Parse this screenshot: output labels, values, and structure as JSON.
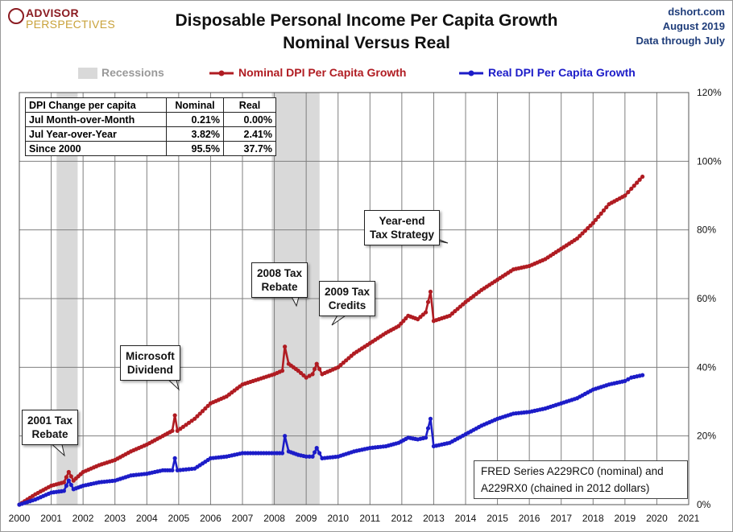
{
  "header": {
    "title_line1": "Disposable Personal Income Per Capita Growth",
    "title_line2": "Nominal Versus Real",
    "logo_line1": "ADVISOR",
    "logo_line2": "PERSPECTIVES",
    "source_site": "dshort.com",
    "source_date": "August 2019",
    "source_through": "Data through July"
  },
  "legend": {
    "recessions": "Recessions",
    "nominal": "Nominal DPI Per Capita Growth",
    "real": "Real DPI Per Capita Growth"
  },
  "table": {
    "headers": [
      "DPI Change per capita",
      "Nominal",
      "Real"
    ],
    "rows": [
      [
        "Jul Month-over-Month",
        "0.21%",
        "0.00%"
      ],
      [
        "Jul Year-over-Year",
        "3.82%",
        "2.41%"
      ],
      [
        "Since 2000",
        "95.5%",
        "37.7%"
      ]
    ]
  },
  "callouts": {
    "rebate2001": [
      "2001 Tax",
      "Rebate"
    ],
    "microsoft": [
      "Microsoft",
      "Dividend"
    ],
    "rebate2008": [
      "2008 Tax",
      "Rebate"
    ],
    "credits2009": [
      "2009 Tax",
      "Credits"
    ],
    "yearend": [
      "Year-end",
      "Tax Strategy"
    ]
  },
  "note": [
    "FRED Series A229RC0 (nominal)  and",
    "A229RX0 (chained in 2012 dollars)"
  ],
  "colors": {
    "nominal": "#b01c22",
    "real": "#1c1cc8",
    "recession": "#d9d9d9",
    "legend_recession_text": "#999999",
    "grid": "#7f7f7f"
  },
  "chart_data": {
    "type": "line",
    "xlim": [
      2000,
      2021
    ],
    "ylim": [
      0,
      120
    ],
    "x_ticks": [
      2000,
      2001,
      2002,
      2003,
      2004,
      2005,
      2006,
      2007,
      2008,
      2009,
      2010,
      2011,
      2012,
      2013,
      2014,
      2015,
      2016,
      2017,
      2018,
      2019,
      2020,
      2021
    ],
    "y_ticks": [
      0,
      20,
      40,
      60,
      80,
      100,
      120
    ],
    "y_tick_labels": [
      "0%",
      "20%",
      "40%",
      "60%",
      "80%",
      "100%",
      "120%"
    ],
    "recessions": [
      [
        2001.17,
        2001.83
      ],
      [
        2007.92,
        2009.42
      ]
    ],
    "series": [
      {
        "name": "Nominal DPI Per Capita Growth",
        "points": [
          [
            2000.0,
            0
          ],
          [
            2000.5,
            3.0
          ],
          [
            2001.0,
            5.5
          ],
          [
            2001.4,
            6.5
          ],
          [
            2001.55,
            9.5
          ],
          [
            2001.7,
            7.0
          ],
          [
            2002.0,
            9.5
          ],
          [
            2002.5,
            11.5
          ],
          [
            2003.0,
            13.0
          ],
          [
            2003.5,
            15.5
          ],
          [
            2004.0,
            17.5
          ],
          [
            2004.5,
            20.0
          ],
          [
            2004.8,
            21.5
          ],
          [
            2004.88,
            26.0
          ],
          [
            2004.96,
            21.5
          ],
          [
            2005.5,
            25.0
          ],
          [
            2006.0,
            29.5
          ],
          [
            2006.5,
            31.5
          ],
          [
            2007.0,
            35.0
          ],
          [
            2007.5,
            36.5
          ],
          [
            2008.0,
            38.0
          ],
          [
            2008.25,
            39.0
          ],
          [
            2008.33,
            46.0
          ],
          [
            2008.45,
            41.0
          ],
          [
            2008.75,
            39.0
          ],
          [
            2009.0,
            37.0
          ],
          [
            2009.2,
            38.0
          ],
          [
            2009.33,
            41.0
          ],
          [
            2009.5,
            38.0
          ],
          [
            2010.0,
            40.0
          ],
          [
            2010.5,
            44.0
          ],
          [
            2011.0,
            47.0
          ],
          [
            2011.5,
            50.0
          ],
          [
            2011.9,
            52.0
          ],
          [
            2012.2,
            55.0
          ],
          [
            2012.5,
            54.0
          ],
          [
            2012.75,
            56.0
          ],
          [
            2012.9,
            62.0
          ],
          [
            2013.0,
            53.5
          ],
          [
            2013.5,
            55.0
          ],
          [
            2014.0,
            59.0
          ],
          [
            2014.5,
            62.5
          ],
          [
            2015.0,
            65.5
          ],
          [
            2015.5,
            68.5
          ],
          [
            2016.0,
            69.5
          ],
          [
            2016.5,
            71.5
          ],
          [
            2017.0,
            74.5
          ],
          [
            2017.5,
            77.5
          ],
          [
            2018.0,
            82.0
          ],
          [
            2018.5,
            87.5
          ],
          [
            2019.0,
            90.0
          ],
          [
            2019.2,
            92.0
          ],
          [
            2019.55,
            95.5
          ]
        ]
      },
      {
        "name": "Real DPI Per Capita Growth",
        "points": [
          [
            2000.0,
            0
          ],
          [
            2000.5,
            1.5
          ],
          [
            2001.0,
            3.5
          ],
          [
            2001.4,
            4.0
          ],
          [
            2001.55,
            7.0
          ],
          [
            2001.7,
            4.5
          ],
          [
            2002.0,
            5.5
          ],
          [
            2002.5,
            6.5
          ],
          [
            2003.0,
            7.0
          ],
          [
            2003.5,
            8.5
          ],
          [
            2004.0,
            9.0
          ],
          [
            2004.5,
            10.0
          ],
          [
            2004.8,
            10.0
          ],
          [
            2004.88,
            13.5
          ],
          [
            2004.96,
            10.0
          ],
          [
            2005.5,
            10.5
          ],
          [
            2006.0,
            13.5
          ],
          [
            2006.5,
            14.0
          ],
          [
            2007.0,
            15.0
          ],
          [
            2007.5,
            15.0
          ],
          [
            2008.0,
            15.0
          ],
          [
            2008.25,
            15.0
          ],
          [
            2008.33,
            20.0
          ],
          [
            2008.45,
            15.5
          ],
          [
            2008.75,
            14.5
          ],
          [
            2009.0,
            14.0
          ],
          [
            2009.2,
            14.0
          ],
          [
            2009.33,
            16.5
          ],
          [
            2009.5,
            13.5
          ],
          [
            2010.0,
            14.0
          ],
          [
            2010.5,
            15.5
          ],
          [
            2011.0,
            16.5
          ],
          [
            2011.5,
            17.0
          ],
          [
            2011.9,
            18.0
          ],
          [
            2012.2,
            19.5
          ],
          [
            2012.5,
            19.0
          ],
          [
            2012.75,
            19.5
          ],
          [
            2012.9,
            25.0
          ],
          [
            2013.0,
            17.0
          ],
          [
            2013.5,
            18.0
          ],
          [
            2014.0,
            20.5
          ],
          [
            2014.5,
            23.0
          ],
          [
            2015.0,
            25.0
          ],
          [
            2015.5,
            26.5
          ],
          [
            2016.0,
            27.0
          ],
          [
            2016.5,
            28.0
          ],
          [
            2017.0,
            29.5
          ],
          [
            2017.5,
            31.0
          ],
          [
            2018.0,
            33.5
          ],
          [
            2018.5,
            35.0
          ],
          [
            2019.0,
            36.0
          ],
          [
            2019.2,
            37.0
          ],
          [
            2019.55,
            37.7
          ]
        ]
      }
    ]
  }
}
